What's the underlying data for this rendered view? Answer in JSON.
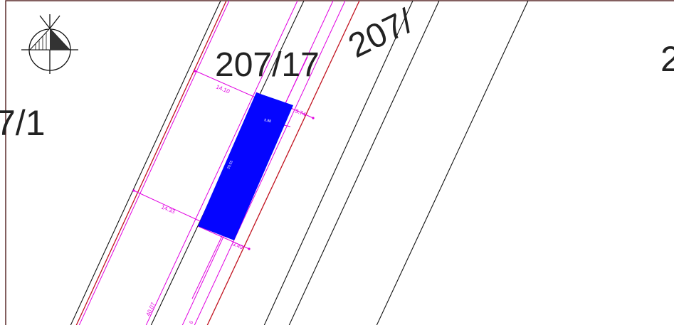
{
  "colors": {
    "frame": "#5a2a2a",
    "parcel_boundary": "#111111",
    "legal_boundary": "#c1121f",
    "dimension": "#e100e1",
    "building": "#0505ff"
  },
  "parcels": {
    "left": "7/1",
    "center": "207/17",
    "rotated": "207/",
    "right_partial": "2"
  },
  "dimensions": {
    "top_width": "14.10",
    "top_right": "3.74",
    "building_short": "5.88",
    "building_long": "20.55",
    "mid_width": "14.33",
    "bottom_right": "3.49",
    "bottom_length": "40.07",
    "bottom_small": "6"
  },
  "icons": {
    "north_arrow": "north-arrow-icon"
  }
}
